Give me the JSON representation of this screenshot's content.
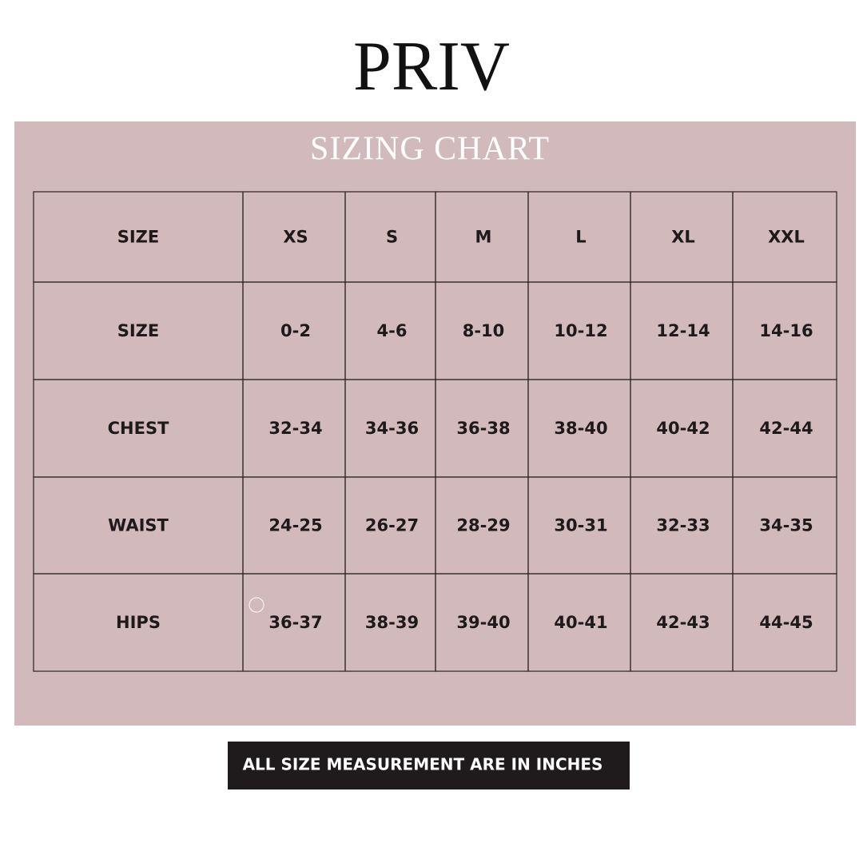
{
  "header": {
    "brand": "PRIV"
  },
  "chart": {
    "title": "SIZING CHART"
  },
  "table": {
    "header": [
      "SIZE",
      "XS",
      "S",
      "M",
      "L",
      "XL",
      "XXL"
    ],
    "rows": [
      [
        "SIZE",
        "0-2",
        "4-6",
        "8-10",
        "10-12",
        "12-14",
        "14-16"
      ],
      [
        "CHEST",
        "32-34",
        "34-36",
        "36-38",
        "38-40",
        "40-42",
        "42-44"
      ],
      [
        "WAIST",
        "24-25",
        "26-27",
        "28-29",
        "30-31",
        "32-33",
        "34-35"
      ],
      [
        "HIPS",
        "36-37",
        "38-39",
        "39-40",
        "40-41",
        "42-43",
        "44-45"
      ]
    ]
  },
  "footer": {
    "note": "ALL SIZE MEASUREMENT ARE IN INCHES"
  }
}
